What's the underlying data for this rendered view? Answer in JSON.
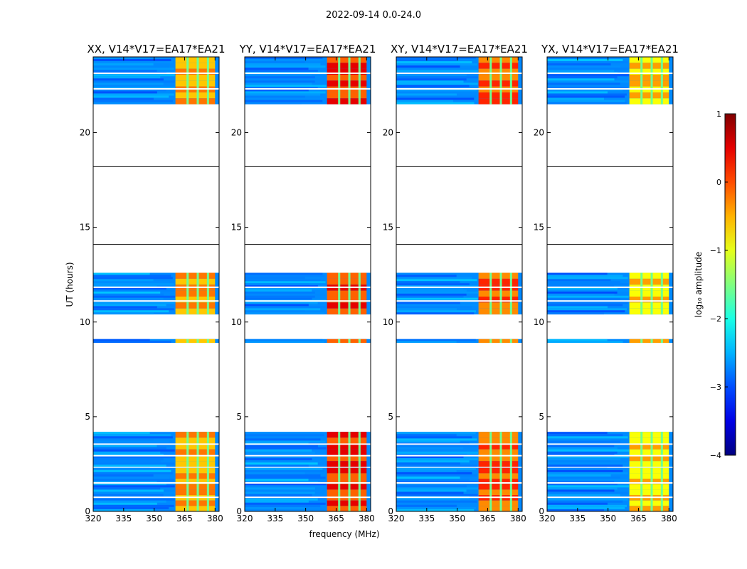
{
  "figure": {
    "suptitle": "2022-09-14 0.0-24.0",
    "xlabel": "frequency (MHz)",
    "ylabel": "UT (hours)",
    "colorbar_label": "log₁₀ amplitude"
  },
  "chart_data": {
    "type": "heatmap",
    "description_axes": {
      "x": {
        "label": "frequency (MHz)",
        "range": [
          320,
          382
        ],
        "ticks": [
          320,
          335,
          350,
          365,
          380
        ]
      },
      "y": {
        "label": "UT (hours)",
        "range": [
          0,
          24
        ],
        "ticks": [
          0,
          5,
          10,
          15,
          20
        ]
      }
    },
    "colorbar": {
      "label": "log₁₀ amplitude",
      "range": [
        -4,
        1
      ],
      "ticks": [
        {
          "value": 1,
          "label": "1"
        },
        {
          "value": 0,
          "label": "0"
        },
        {
          "value": -1,
          "label": "−1"
        },
        {
          "value": -2,
          "label": "−2"
        },
        {
          "value": -3,
          "label": "−3"
        },
        {
          "value": -4,
          "label": "−4"
        }
      ],
      "colormap": "jet"
    },
    "panels": [
      {
        "title": "XX, V14*V17=EA17*EA21",
        "band_level": -0.6,
        "hot_level": -0.2
      },
      {
        "title": "YY, V14*V17=EA17*EA21",
        "band_level": -0.1,
        "hot_level": 0.5
      },
      {
        "title": "XY, V14*V17=EA17*EA21",
        "band_level": -0.3,
        "hot_level": 0.2
      },
      {
        "title": "YX, V14*V17=EA17*EA21",
        "band_level": -0.9,
        "hot_level": -0.4
      }
    ],
    "data_blocks_ut_hours": [
      [
        0.0,
        2.3
      ],
      [
        2.35,
        4.2
      ],
      [
        10.4,
        12.6
      ],
      [
        21.5,
        24.0
      ]
    ],
    "thin_block_ut_hours": [
      8.9,
      9.1
    ],
    "band_frequency_mhz": [
      360.5,
      380.0
    ],
    "band_gap_frequencies_mhz": [
      366.5,
      371.5,
      376.5
    ],
    "noise_floor_level": -2.7,
    "empty_gap_boundaries_ut_hours": [
      18.2,
      14.1
    ]
  }
}
